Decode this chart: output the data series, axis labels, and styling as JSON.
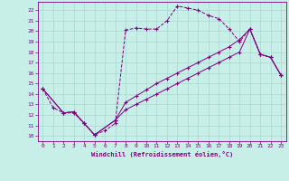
{
  "xlabel": "Windchill (Refroidissement éolien,°C)",
  "bg_color": "#c8eee8",
  "line_color": "#800080",
  "grid_color": "#a8d8d0",
  "xlim": [
    -0.5,
    23.5
  ],
  "ylim": [
    9.5,
    22.8
  ],
  "yticks": [
    10,
    11,
    12,
    13,
    14,
    15,
    16,
    17,
    18,
    19,
    20,
    21,
    22
  ],
  "xticks": [
    0,
    1,
    2,
    3,
    4,
    5,
    6,
    7,
    8,
    9,
    10,
    11,
    12,
    13,
    14,
    15,
    16,
    17,
    18,
    19,
    20,
    21,
    22,
    23
  ],
  "line1_x": [
    0,
    1,
    2,
    3,
    4,
    5,
    6,
    7,
    8,
    9,
    10,
    11,
    12,
    13,
    14,
    15,
    16,
    17,
    18,
    19,
    20,
    21,
    22,
    23
  ],
  "line1_y": [
    14.5,
    12.7,
    12.2,
    12.2,
    11.2,
    10.1,
    10.5,
    11.2,
    20.1,
    20.3,
    20.2,
    20.2,
    21.0,
    22.4,
    22.2,
    22.0,
    21.5,
    21.2,
    20.2,
    19.0,
    20.2,
    17.8,
    17.5,
    15.8
  ],
  "line2_x": [
    0,
    2,
    3,
    4,
    5,
    7,
    8,
    9,
    10,
    11,
    12,
    13,
    14,
    15,
    16,
    17,
    18,
    19,
    20,
    21,
    22,
    23
  ],
  "line2_y": [
    14.5,
    12.2,
    12.3,
    11.2,
    10.1,
    11.5,
    13.2,
    13.8,
    14.4,
    15.0,
    15.5,
    16.0,
    16.5,
    17.0,
    17.5,
    18.0,
    18.5,
    19.2,
    20.2,
    17.8,
    17.5,
    15.8
  ],
  "line3_x": [
    0,
    2,
    3,
    4,
    5,
    7,
    8,
    9,
    10,
    11,
    12,
    13,
    14,
    15,
    16,
    17,
    18,
    19,
    20,
    21,
    22,
    23
  ],
  "line3_y": [
    14.5,
    12.2,
    12.3,
    11.2,
    10.1,
    11.5,
    12.5,
    13.0,
    13.5,
    14.0,
    14.5,
    15.0,
    15.5,
    16.0,
    16.5,
    17.0,
    17.5,
    18.0,
    20.2,
    17.8,
    17.5,
    15.8
  ]
}
